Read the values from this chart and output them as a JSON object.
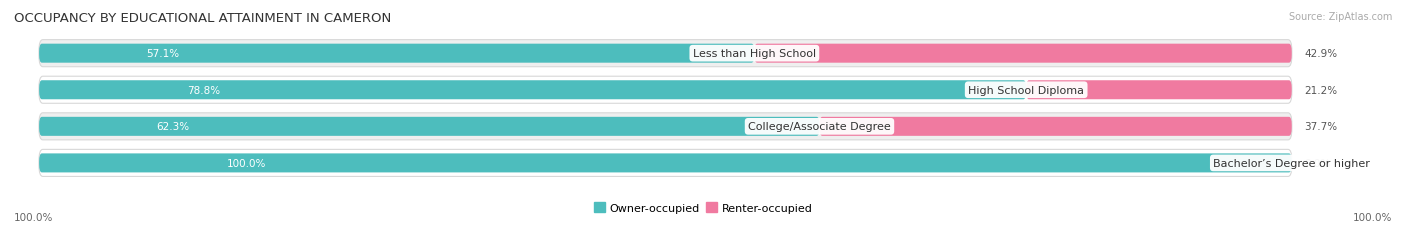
{
  "title": "OCCUPANCY BY EDUCATIONAL ATTAINMENT IN CAMERON",
  "source": "Source: ZipAtlas.com",
  "categories": [
    "Less than High School",
    "High School Diploma",
    "College/Associate Degree",
    "Bachelor’s Degree or higher"
  ],
  "owner_pct": [
    57.1,
    78.8,
    62.3,
    100.0
  ],
  "renter_pct": [
    42.9,
    21.2,
    37.7,
    0.0
  ],
  "owner_color": "#4dbdbd",
  "renter_color": "#f07aa0",
  "renter_color_low": "#f5b8cc",
  "row_bg_colors": [
    "#efefef",
    "#ffffff",
    "#efefef",
    "#ffffff"
  ],
  "row_border_color": "#d8d8d8",
  "title_fontsize": 9.5,
  "label_fontsize": 8,
  "bar_label_fontsize": 7.5,
  "legend_fontsize": 8,
  "axis_label_fontsize": 7.5,
  "background_color": "#ffffff",
  "axis_left_label": "100.0%",
  "axis_right_label": "100.0%"
}
